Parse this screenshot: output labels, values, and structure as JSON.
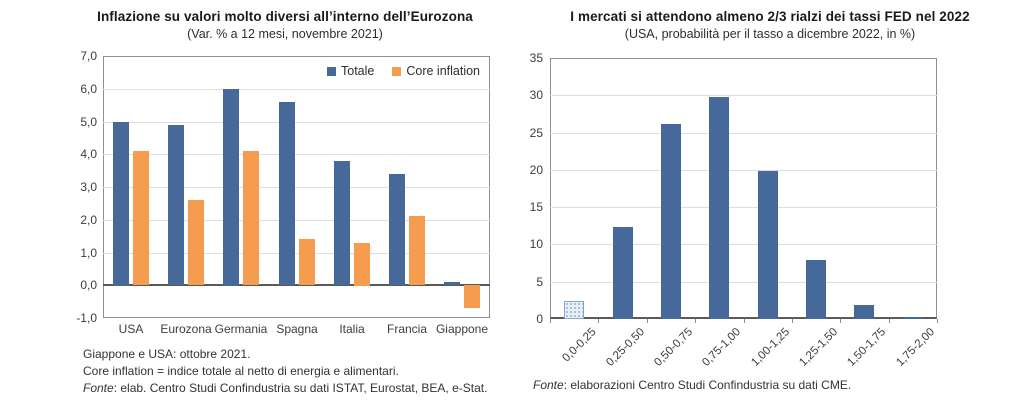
{
  "page": {
    "background": "#ffffff"
  },
  "chart_data": [
    {
      "id": "inflazione-eurozona",
      "type": "bar",
      "title": "Inflazione su valori molto diversi all’interno dell’Eurozona",
      "subtitle": "(Var. % a 12 mesi, novembre 2021)",
      "categories": [
        "USA",
        "Eurozona",
        "Germania",
        "Spagna",
        "Italia",
        "Francia",
        "Giappone"
      ],
      "series": [
        {
          "name": "Totale",
          "color": "#46699A",
          "values": [
            5.0,
            4.9,
            6.0,
            5.6,
            3.8,
            3.4,
            0.1
          ]
        },
        {
          "name": "Core inflation",
          "color": "#F69C4F",
          "values": [
            4.1,
            2.6,
            4.1,
            1.4,
            1.3,
            2.1,
            -0.7
          ]
        }
      ],
      "ylim": [
        -1.0,
        7.0
      ],
      "ytick_step": 1.0,
      "ytick_labels": [
        "7,0",
        "6,0",
        "5,0",
        "4,0",
        "3,0",
        "2,0",
        "1,0",
        "0,0",
        "-1,0"
      ],
      "grid": true,
      "legend_position": "top-right-inside",
      "footnotes": {
        "line1": "Giappone e USA: ottobre 2021.",
        "line2": "Core inflation = indice totale al netto di energia e alimentari.",
        "fonte_label": "Fonte",
        "fonte_text": ": elab. Centro Studi Confindustria su dati ISTAT, Eurostat, BEA, e-Stat."
      }
    },
    {
      "id": "rialzi-fed",
      "type": "bar",
      "title": "I mercati si attendono almeno 2/3 rialzi dei tassi FED nel 2022",
      "subtitle": "(USA, probabilità per il tasso a dicembre 2022, in %)",
      "categories": [
        "0,0-0,25",
        "0,25-0,50",
        "0,50-0,75",
        "0,75-1,00",
        "1,00-1,25",
        "1,25-1,50",
        "1,50-1,75",
        "1,75-2,00"
      ],
      "values": [
        2.4,
        12.3,
        26.2,
        29.8,
        19.8,
        7.9,
        1.9,
        0.3
      ],
      "bar_color": "#46699A",
      "first_bar_pattern": {
        "fill": "#e9eff7",
        "dot_color": "#96b1d4",
        "border": "#84a7cc",
        "style": "dotted-pattern"
      },
      "ylim": [
        0,
        35
      ],
      "ytick_step": 5,
      "ytick_labels": [
        "35",
        "30",
        "25",
        "20",
        "15",
        "10",
        "5",
        "0"
      ],
      "grid": true,
      "footer": {
        "fonte_label": "Fonte",
        "fonte_text": ": elaborazioni Centro Studi Confindustria su dati CME."
      }
    }
  ]
}
